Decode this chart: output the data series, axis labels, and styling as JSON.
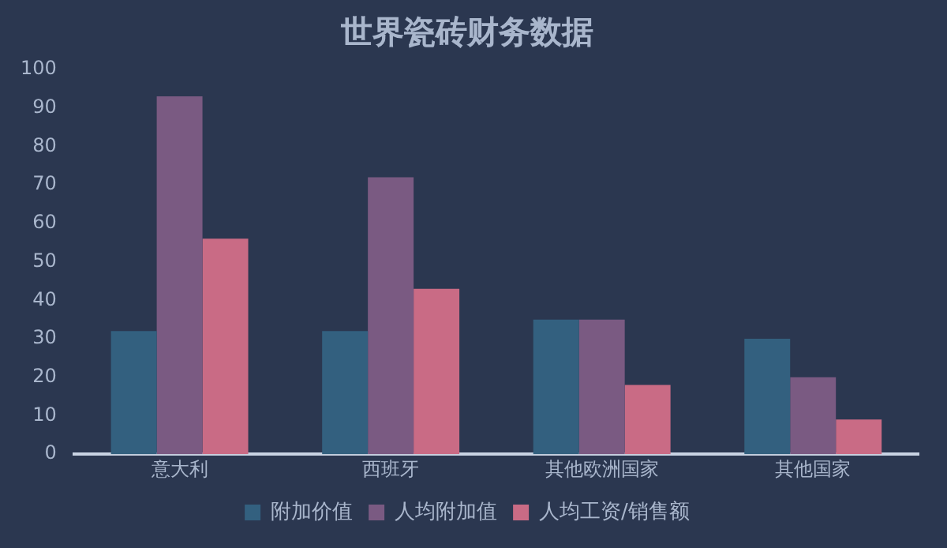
{
  "chart_data": {
    "type": "bar",
    "title": "世界瓷砖财务数据",
    "categories": [
      "意大利",
      "西班牙",
      "其他欧洲国家",
      "其他国家"
    ],
    "series": [
      {
        "name": "附加价值",
        "color": "#33607f",
        "values": [
          32,
          32,
          35,
          30
        ]
      },
      {
        "name": "人均附加值",
        "color": "#7a5a82",
        "values": [
          93,
          72,
          35,
          20
        ]
      },
      {
        "name": "人均工资/销售额",
        "color": "#c96b85",
        "values": [
          56,
          43,
          18,
          9
        ]
      }
    ],
    "ylim": [
      0,
      100
    ],
    "yticks": [
      0,
      10,
      20,
      30,
      40,
      50,
      60,
      70,
      80,
      90,
      100
    ],
    "grid": false,
    "legend": "bottom"
  }
}
